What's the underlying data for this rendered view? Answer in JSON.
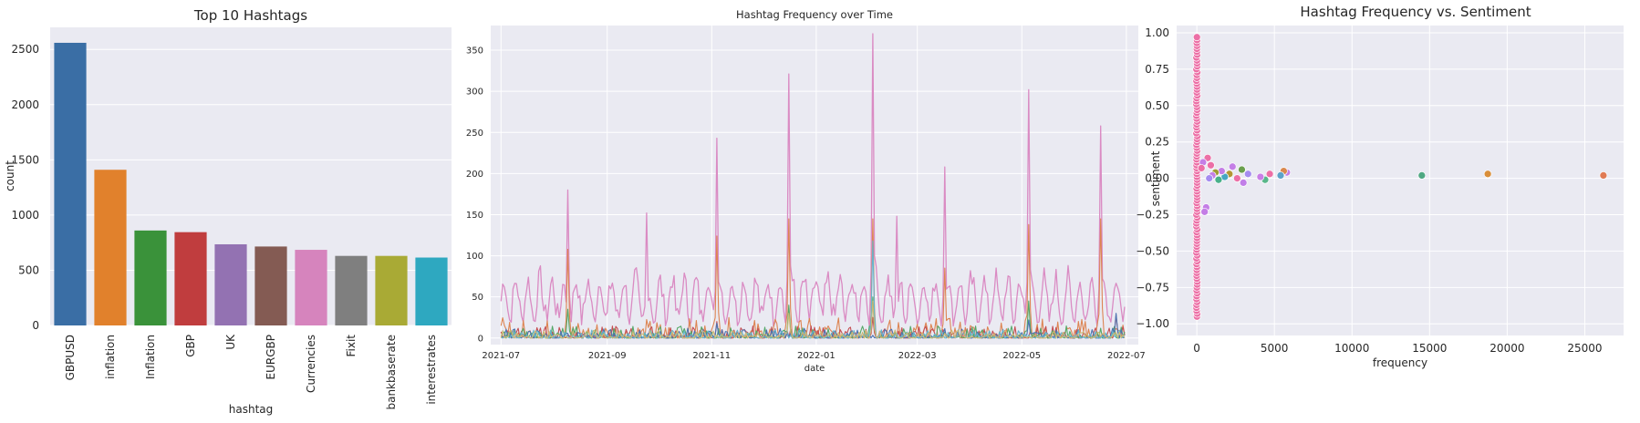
{
  "chart_data": [
    {
      "type": "bar",
      "title": "Top 10 Hashtags",
      "xlabel": "hashtag",
      "ylabel": "count",
      "ylim": [
        0,
        2700
      ],
      "yticks": [
        0,
        500,
        1000,
        1500,
        2000,
        2500
      ],
      "categories": [
        "GBPUSD",
        "inflation",
        "Inflation",
        "GBP",
        "UK",
        "EURGBP",
        "Currencies",
        "Fixit",
        "bankbaserate",
        "interestrates"
      ],
      "values": [
        2560,
        1410,
        860,
        845,
        735,
        715,
        685,
        630,
        630,
        615
      ],
      "colors": [
        "#3a6ea5",
        "#e1812c",
        "#3a923a",
        "#c03d3e",
        "#9372b2",
        "#845b53",
        "#d684bd",
        "#7f7f7f",
        "#a9aa35",
        "#2ea8c0"
      ],
      "grid": true
    },
    {
      "type": "line",
      "title": "Hashtag Frequency over Time",
      "xlabel": "date",
      "ylabel": "",
      "xticks": [
        "2021-07",
        "2021-09",
        "2021-11",
        "2022-01",
        "2022-03",
        "2022-05",
        "2022-07"
      ],
      "xlim": [
        "2021-06-25",
        "2022-07-08"
      ],
      "ylim": [
        -8,
        380
      ],
      "yticks": [
        0,
        50,
        100,
        150,
        200,
        250,
        300,
        350
      ],
      "grid": true,
      "series": [
        {
          "color": "#da8bc3",
          "peaks": [
            {
              "date": "2021-08-09",
              "value": 180
            },
            {
              "date": "2021-09-24",
              "value": 152
            },
            {
              "date": "2021-11-04",
              "value": 243
            },
            {
              "date": "2021-12-16",
              "value": 321
            },
            {
              "date": "2022-02-03",
              "value": 370
            },
            {
              "date": "2022-02-17",
              "value": 148
            },
            {
              "date": "2022-03-17",
              "value": 208
            },
            {
              "date": "2022-05-05",
              "value": 302
            },
            {
              "date": "2022-06-16",
              "value": 258
            }
          ],
          "typical_range": [
            10,
            90
          ]
        },
        {
          "color": "#dd8452",
          "peaks": [
            {
              "date": "2021-08-09",
              "value": 108
            },
            {
              "date": "2021-11-04",
              "value": 124
            },
            {
              "date": "2021-12-16",
              "value": 145
            },
            {
              "date": "2022-02-03",
              "value": 145
            },
            {
              "date": "2022-03-17",
              "value": 85
            },
            {
              "date": "2022-05-05",
              "value": 138
            },
            {
              "date": "2022-06-16",
              "value": 145
            }
          ],
          "typical_range": [
            0,
            25
          ]
        },
        {
          "color": "#c44e52",
          "peaks": [
            {
              "date": "2021-11-04",
              "value": 20
            },
            {
              "date": "2022-02-03",
              "value": 25
            },
            {
              "date": "2022-06-25",
              "value": 28
            }
          ],
          "typical_range": [
            0,
            15
          ]
        },
        {
          "color": "#55a868",
          "peaks": [
            {
              "date": "2021-08-09",
              "value": 35
            },
            {
              "date": "2021-12-16",
              "value": 40
            },
            {
              "date": "2022-02-03",
              "value": 50
            },
            {
              "date": "2022-05-05",
              "value": 45
            }
          ],
          "typical_range": [
            0,
            15
          ]
        },
        {
          "color": "#4c72b0",
          "peaks": [
            {
              "date": "2021-11-04",
              "value": 18
            },
            {
              "date": "2022-05-05",
              "value": 22
            },
            {
              "date": "2022-06-25",
              "value": 30
            }
          ],
          "typical_range": [
            0,
            12
          ]
        },
        {
          "color": "#64b5cd",
          "peaks": [
            {
              "date": "2022-02-03",
              "value": 118
            }
          ],
          "typical_range": [
            0,
            10
          ]
        },
        {
          "color": "#ccb974",
          "peaks": [
            {
              "date": "2021-12-16",
              "value": 30
            },
            {
              "date": "2022-02-03",
              "value": 45
            }
          ],
          "typical_range": [
            0,
            10
          ]
        }
      ]
    },
    {
      "type": "scatter",
      "title": "Hashtag Frequency vs. Sentiment",
      "xlabel": "frequency",
      "ylabel": "sentiment",
      "xlim": [
        -1300,
        27500
      ],
      "ylim": [
        -1.08,
        1.05
      ],
      "xticks": [
        0,
        5000,
        10000,
        15000,
        20000,
        25000
      ],
      "yticks": [
        -1.0,
        -0.75,
        -0.5,
        -0.25,
        0.0,
        0.25,
        0.5,
        0.75,
        1.0
      ],
      "grid": true,
      "highlight_points": [
        {
          "x": 26200,
          "y": 0.02,
          "color": "#e07b54"
        },
        {
          "x": 18750,
          "y": 0.03,
          "color": "#d98e3a"
        },
        {
          "x": 14500,
          "y": 0.02,
          "color": "#4fa882"
        },
        {
          "x": 5800,
          "y": 0.04,
          "color": "#c47ee6"
        },
        {
          "x": 5600,
          "y": 0.05,
          "color": "#d9884e"
        },
        {
          "x": 5400,
          "y": 0.02,
          "color": "#5da3c8"
        },
        {
          "x": 4700,
          "y": 0.03,
          "color": "#ec6fa6"
        },
        {
          "x": 4400,
          "y": -0.01,
          "color": "#59b68a"
        },
        {
          "x": 4100,
          "y": 0.01,
          "color": "#c97fe6"
        },
        {
          "x": 3300,
          "y": 0.03,
          "color": "#a58cf0"
        },
        {
          "x": 3000,
          "y": -0.03,
          "color": "#c17ee8"
        },
        {
          "x": 2900,
          "y": 0.06,
          "color": "#6a9f4d"
        },
        {
          "x": 2600,
          "y": 0.0,
          "color": "#ec6fa6"
        },
        {
          "x": 2300,
          "y": 0.08,
          "color": "#c47ee6"
        },
        {
          "x": 2100,
          "y": 0.03,
          "color": "#b29633"
        },
        {
          "x": 1800,
          "y": 0.01,
          "color": "#46a6c2"
        },
        {
          "x": 1600,
          "y": 0.05,
          "color": "#c47ee6"
        },
        {
          "x": 1400,
          "y": -0.01,
          "color": "#48b08a"
        },
        {
          "x": 1200,
          "y": 0.04,
          "color": "#9f9a33"
        },
        {
          "x": 1000,
          "y": 0.02,
          "color": "#c47ee6"
        },
        {
          "x": 900,
          "y": 0.09,
          "color": "#ec6fa6"
        },
        {
          "x": 800,
          "y": 0.0,
          "color": "#a58cf0"
        },
        {
          "x": 700,
          "y": 0.14,
          "color": "#ec6fa6"
        },
        {
          "x": 600,
          "y": -0.2,
          "color": "#c47ee6"
        },
        {
          "x": 500,
          "y": -0.23,
          "color": "#c47ee6"
        },
        {
          "x": 400,
          "y": 0.11,
          "color": "#c47ee6"
        },
        {
          "x": 300,
          "y": 0.07,
          "color": "#ec6fa6"
        }
      ],
      "cluster_at_zero": {
        "x": 0,
        "color": "#ec6fa6",
        "y_range": [
          -0.95,
          0.97
        ]
      }
    }
  ]
}
